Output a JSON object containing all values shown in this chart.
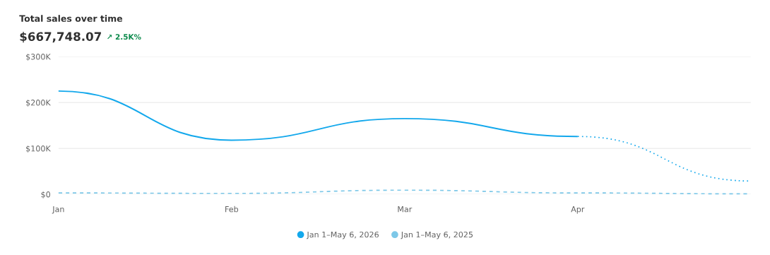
{
  "chart_data": {
    "type": "line",
    "title": "Total sales over time",
    "annotations": [
      "$667,748.07",
      "↗ 2.5K%"
    ],
    "categories": [
      "Jan",
      "Feb",
      "Mar",
      "Apr",
      null
    ],
    "series": [
      {
        "name": "Jan 1–May 6, 2026",
        "color": "#13a8ec",
        "line_style": "solid",
        "values": [
          225000,
          118000,
          165000,
          126000,
          null
        ]
      },
      {
        "color": "#13a8ec",
        "line_style": "dotted",
        "values": [
          null,
          null,
          null,
          126000,
          29000
        ]
      },
      {
        "name": "Jan 1–May 6, 2025",
        "color": "#7dc8e8",
        "line_style": "dashed",
        "values": [
          3000,
          2000,
          9000,
          3000,
          1000
        ]
      }
    ],
    "ylim": [
      0,
      300000
    ],
    "yticks": [
      {
        "value": 0,
        "label": "$0"
      },
      {
        "value": 100000,
        "label": "$100K"
      },
      {
        "value": 200000,
        "label": "$200K"
      },
      {
        "value": 300000,
        "label": "$300K"
      }
    ],
    "grid": "y",
    "legend": "bottom",
    "marker": "none"
  }
}
